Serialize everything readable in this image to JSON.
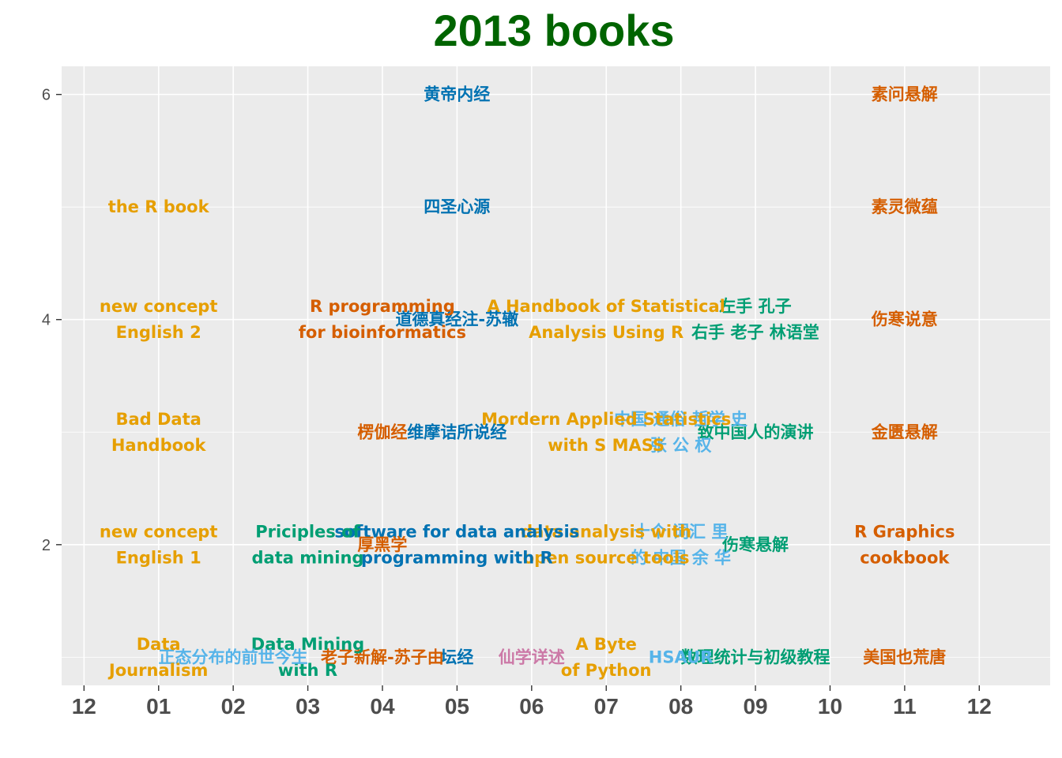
{
  "chart_data": {
    "type": "scatter",
    "title": "2013 books",
    "xlabel": "",
    "ylabel": "",
    "xlim": [
      -0.3,
      12.95
    ],
    "ylim": [
      0.75,
      6.25
    ],
    "x_tick_values": [
      0,
      1,
      2,
      3,
      4,
      5,
      6,
      7,
      8,
      9,
      10,
      11,
      12
    ],
    "x_tick_labels": [
      "12",
      "01",
      "02",
      "03",
      "04",
      "05",
      "06",
      "07",
      "08",
      "09",
      "10",
      "11",
      "12"
    ],
    "y_tick_values": [
      2,
      4,
      6
    ],
    "y_tick_labels": [
      "2",
      "4",
      "6"
    ],
    "grid": true,
    "legend": "none",
    "colors": {
      "orange": "#E69F00",
      "vermillion": "#D55E00",
      "green": "#009E73",
      "blue": "#0072B2",
      "skyblue": "#56B4E9",
      "pink": "#CC79A7",
      "panel": "#EBEBEB",
      "grid": "#FFFFFF"
    },
    "points": [
      {
        "x": 10.999,
        "y": 6,
        "label": "素问悬解",
        "color": "#D55E00"
      },
      {
        "x": 10.999,
        "y": 5,
        "label": "素灵微蕴",
        "color": "#D55E00"
      },
      {
        "x": 10.999,
        "y": 4,
        "label": "伤寒说意",
        "color": "#D55E00"
      },
      {
        "x": 10.999,
        "y": 3,
        "label": "金匮悬解",
        "color": "#D55E00"
      },
      {
        "x": 10.999,
        "y": 2,
        "label": "R Graphics\ncookbook",
        "color": "#D55E00"
      },
      {
        "x": 10.999,
        "y": 1,
        "label": "美国也荒唐",
        "color": "#D55E00"
      },
      {
        "x": 8.999,
        "y": 4,
        "label": "左手 孔子\n右手 老子 林语堂",
        "color": "#009E73"
      },
      {
        "x": 8.999,
        "y": 3,
        "label": "致中国人的演讲",
        "color": "#009E73"
      },
      {
        "x": 8.999,
        "y": 2,
        "label": "伤寒悬解",
        "color": "#009E73"
      },
      {
        "x": 8.999,
        "y": 1,
        "label": "数理统计与初级教程",
        "color": "#009E73"
      },
      {
        "x": 7.999,
        "y": 3,
        "label": "中国 通俗 哲学 史\n张 公 权",
        "color": "#56B4E9"
      },
      {
        "x": 7.999,
        "y": 2,
        "label": "十个 词汇 里\n的 中国 余 华",
        "color": "#56B4E9"
      },
      {
        "x": 7.999,
        "y": 1,
        "label": "HSAUR",
        "color": "#56B4E9"
      },
      {
        "x": 6.999,
        "y": 4,
        "label": "A Handbook of Statistical\nAnalysis Using R",
        "color": "#E69F00"
      },
      {
        "x": 6.999,
        "y": 3,
        "label": "Mordern Applied Statistics\nwith S MASS",
        "color": "#E69F00"
      },
      {
        "x": 6.999,
        "y": 2,
        "label": "data analysis with\nopen source tools",
        "color": "#E69F00"
      },
      {
        "x": 6.999,
        "y": 1,
        "label": "A Byte\nof Python",
        "color": "#E69F00"
      },
      {
        "x": 5.999,
        "y": 1,
        "label": "仙学详述",
        "color": "#CC79A7"
      },
      {
        "x": 4.999,
        "y": 6,
        "label": "黄帝内经",
        "color": "#0072B2"
      },
      {
        "x": 4.999,
        "y": 5,
        "label": "四圣心源",
        "color": "#0072B2"
      },
      {
        "x": 4.999,
        "y": 4,
        "label": "道德真经注-苏辙",
        "color": "#0072B2"
      },
      {
        "x": 4.999,
        "y": 3,
        "label": "维摩诘所说经",
        "color": "#0072B2"
      },
      {
        "x": 4.999,
        "y": 2,
        "label": "software for data analysis\nprogramming with R",
        "color": "#0072B2"
      },
      {
        "x": 4.999,
        "y": 1,
        "label": "坛经",
        "color": "#0072B2"
      },
      {
        "x": 3.999,
        "y": 4,
        "label": "R programming\nfor bioinformatics",
        "color": "#D55E00"
      },
      {
        "x": 3.999,
        "y": 3,
        "label": "楞伽经",
        "color": "#D55E00"
      },
      {
        "x": 3.999,
        "y": 2,
        "label": "厚黑学",
        "color": "#D55E00"
      },
      {
        "x": 3.999,
        "y": 1,
        "label": "老子新解-苏子由",
        "color": "#D55E00"
      },
      {
        "x": 2.999,
        "y": 2,
        "label": "Priciples of\ndata mining",
        "color": "#009E73"
      },
      {
        "x": 2.999,
        "y": 1,
        "label": "Data Mining\nwith R",
        "color": "#009E73"
      },
      {
        "x": 1.999,
        "y": 1,
        "label": "正态分布的前世今生",
        "color": "#56B4E9"
      },
      {
        "x": 0.999,
        "y": 5,
        "label": "the R book",
        "color": "#E69F00"
      },
      {
        "x": 0.999,
        "y": 4,
        "label": "new concept\nEnglish 2",
        "color": "#E69F00"
      },
      {
        "x": 0.999,
        "y": 3,
        "label": "Bad Data\nHandbook",
        "color": "#E69F00"
      },
      {
        "x": 0.999,
        "y": 2,
        "label": "new concept\nEnglish 1",
        "color": "#E69F00"
      },
      {
        "x": 0.999,
        "y": 1,
        "label": "Data\nJournalism",
        "color": "#E69F00"
      }
    ]
  }
}
